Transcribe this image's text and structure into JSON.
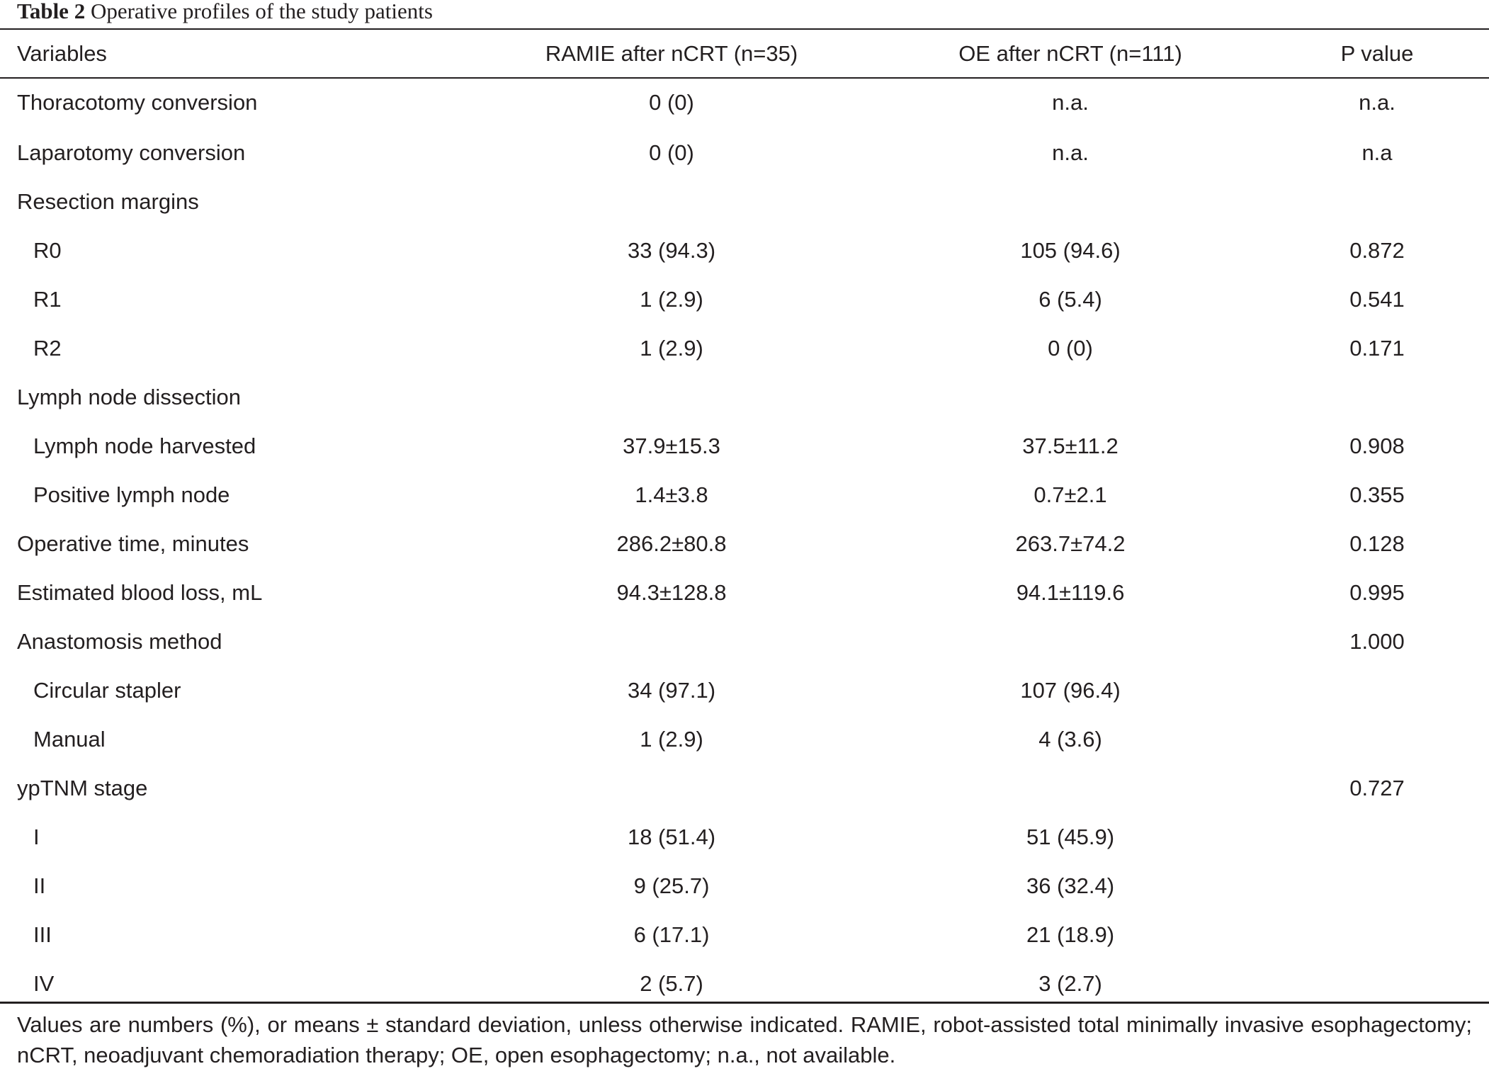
{
  "caption": {
    "label": "Table 2",
    "text": "Operative profiles of the study patients"
  },
  "table": {
    "headers": [
      "Variables",
      "RAMIE after nCRT (n=35)",
      "OE after nCRT (n=111)",
      "P value"
    ],
    "rows": [
      {
        "indent": false,
        "cells": [
          "Thoracotomy conversion",
          "0 (0)",
          "n.a.",
          "n.a."
        ]
      },
      {
        "indent": false,
        "cells": [
          "Laparotomy conversion",
          "0 (0)",
          "n.a.",
          "n.a"
        ]
      },
      {
        "indent": false,
        "cells": [
          "Resection margins",
          "",
          "",
          ""
        ]
      },
      {
        "indent": true,
        "cells": [
          "R0",
          "33 (94.3)",
          "105 (94.6)",
          "0.872"
        ]
      },
      {
        "indent": true,
        "cells": [
          "R1",
          "1 (2.9)",
          "6 (5.4)",
          "0.541"
        ]
      },
      {
        "indent": true,
        "cells": [
          "R2",
          "1 (2.9)",
          "0 (0)",
          "0.171"
        ]
      },
      {
        "indent": false,
        "cells": [
          "Lymph node dissection",
          "",
          "",
          ""
        ]
      },
      {
        "indent": true,
        "cells": [
          "Lymph node harvested",
          "37.9±15.3",
          "37.5±11.2",
          "0.908"
        ]
      },
      {
        "indent": true,
        "cells": [
          "Positive lymph node",
          "1.4±3.8",
          "0.7±2.1",
          "0.355"
        ]
      },
      {
        "indent": false,
        "cells": [
          "Operative time, minutes",
          "286.2±80.8",
          "263.7±74.2",
          "0.128"
        ]
      },
      {
        "indent": false,
        "cells": [
          "Estimated blood loss, mL",
          "94.3±128.8",
          "94.1±119.6",
          "0.995"
        ]
      },
      {
        "indent": false,
        "cells": [
          "Anastomosis method",
          "",
          "",
          "1.000"
        ]
      },
      {
        "indent": true,
        "cells": [
          "Circular stapler",
          "34 (97.1)",
          "107 (96.4)",
          ""
        ]
      },
      {
        "indent": true,
        "cells": [
          "Manual",
          "1 (2.9)",
          "4 (3.6)",
          ""
        ]
      },
      {
        "indent": false,
        "cells": [
          "ypTNM stage",
          "",
          "",
          "0.727"
        ]
      },
      {
        "indent": true,
        "cells": [
          "I",
          "18 (51.4)",
          "51 (45.9)",
          ""
        ]
      },
      {
        "indent": true,
        "cells": [
          "II",
          "9 (25.7)",
          "36 (32.4)",
          ""
        ]
      },
      {
        "indent": true,
        "cells": [
          "III",
          "6 (17.1)",
          "21 (18.9)",
          ""
        ]
      },
      {
        "indent": true,
        "cells": [
          "IV",
          "2 (5.7)",
          "3 (2.7)",
          ""
        ]
      }
    ]
  },
  "footnote": "Values are numbers (%), or means ± standard deviation, unless otherwise indicated. RAMIE, robot-assisted total minimally invasive esophagectomy; nCRT, neoadjuvant chemoradiation therapy; OE, open esophagectomy; n.a., not available."
}
